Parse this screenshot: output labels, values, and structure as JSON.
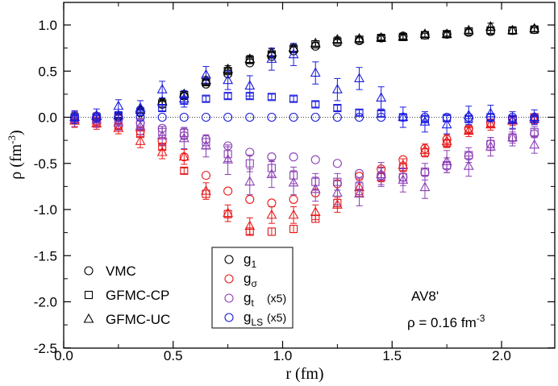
{
  "chart_data": {
    "type": "scatter",
    "xlabel": "r (fm)",
    "ylabel_base": "ρ (fm",
    "ylabel_sup": "-3",
    "ylabel_tail": ")",
    "xlim": [
      0.0,
      2.2
    ],
    "ylim": [
      -2.5,
      1.25
    ],
    "xticks": [
      0.0,
      0.5,
      1.0,
      1.5,
      2.0
    ],
    "xtick_labels": [
      "0.0",
      "0.5",
      "1.0",
      "1.5",
      "2.0"
    ],
    "yticks": [
      1.0,
      0.5,
      0.0,
      -0.5,
      -1.0,
      -1.5,
      -2.0,
      -2.5
    ],
    "ytick_labels": [
      "1.0",
      "0.5",
      "0.0",
      "-0.5",
      "-1.0",
      "-1.5",
      "-2.0",
      "-2.5"
    ],
    "colors": {
      "g1": "#000000",
      "gsigma": "#e8191a",
      "gt": "#8a3fb5",
      "gLS": "#1a1ae0"
    },
    "method_legend": [
      {
        "marker": "circle",
        "label": "VMC"
      },
      {
        "marker": "square",
        "label": "GFMC-CP"
      },
      {
        "marker": "triangle",
        "label": "GFMC-UC"
      }
    ],
    "component_legend": [
      {
        "key": "g1",
        "base": "g",
        "sub": "1",
        "note": ""
      },
      {
        "key": "gsigma",
        "base": "g",
        "sub": "σ",
        "note": ""
      },
      {
        "key": "gt",
        "base": "g",
        "sub": "t",
        "note": "(x5)"
      },
      {
        "key": "gLS",
        "base": "g",
        "sub": "LS",
        "note": "(x5)"
      }
    ],
    "annotation": {
      "line1": "AV8'",
      "line2_base": "ρ = 0.16 fm",
      "line2_sup": "-3"
    },
    "series": [
      {
        "key": "g1",
        "method": "VMC",
        "marker": "circle",
        "x": [
          0.05,
          0.15,
          0.25,
          0.35,
          0.45,
          0.55,
          0.65,
          0.75,
          0.85,
          0.95,
          1.05,
          1.15,
          1.25,
          1.35,
          1.45,
          1.55,
          1.65,
          1.75,
          1.85,
          1.95,
          2.05,
          2.15
        ],
        "y": [
          0.0,
          0.0,
          0.0,
          0.05,
          0.14,
          0.23,
          0.36,
          0.47,
          0.59,
          0.66,
          0.72,
          0.77,
          0.81,
          0.83,
          0.86,
          0.88,
          0.89,
          0.9,
          0.92,
          0.93,
          0.94,
          0.95
        ]
      },
      {
        "key": "g1",
        "method": "GFMC-CP",
        "marker": "square",
        "x": [
          0.05,
          0.15,
          0.25,
          0.35,
          0.45,
          0.55,
          0.65,
          0.75,
          0.85,
          0.95,
          1.05,
          1.15,
          1.25,
          1.35,
          1.45,
          1.55,
          1.65,
          1.75,
          1.85,
          1.95,
          2.05,
          2.15
        ],
        "y": [
          0.0,
          0.0,
          0.01,
          0.06,
          0.15,
          0.24,
          0.38,
          0.5,
          0.62,
          0.68,
          0.74,
          0.79,
          0.82,
          0.84,
          0.86,
          0.87,
          0.89,
          0.9,
          0.93,
          0.94,
          0.94,
          0.95
        ],
        "err": [
          0.03,
          0.02,
          0.02,
          0.02,
          0.02,
          0.02,
          0.03,
          0.03,
          0.03,
          0.03,
          0.03,
          0.02,
          0.02,
          0.02,
          0.02,
          0.02,
          0.02,
          0.02,
          0.02,
          0.03,
          0.03,
          0.02
        ]
      },
      {
        "key": "g1",
        "method": "GFMC-UC",
        "marker": "triangle",
        "x": [
          0.05,
          0.15,
          0.25,
          0.35,
          0.45,
          0.55,
          0.65,
          0.75,
          0.85,
          0.95,
          1.05,
          1.15,
          1.25,
          1.35,
          1.45,
          1.55,
          1.65,
          1.75,
          1.85,
          1.95,
          2.05,
          2.15
        ],
        "y": [
          0.0,
          0.01,
          0.02,
          0.08,
          0.17,
          0.25,
          0.4,
          0.52,
          0.63,
          0.7,
          0.75,
          0.8,
          0.84,
          0.85,
          0.86,
          0.87,
          0.9,
          0.9,
          0.94,
          0.98,
          0.94,
          0.96
        ],
        "err": [
          0.05,
          0.04,
          0.04,
          0.03,
          0.03,
          0.03,
          0.04,
          0.04,
          0.04,
          0.04,
          0.04,
          0.03,
          0.03,
          0.03,
          0.03,
          0.03,
          0.03,
          0.03,
          0.03,
          0.04,
          0.04,
          0.03
        ]
      },
      {
        "key": "gsigma",
        "method": "VMC",
        "marker": "circle",
        "x": [
          0.05,
          0.15,
          0.25,
          0.35,
          0.45,
          0.55,
          0.65,
          0.75,
          0.85,
          0.95,
          1.05,
          1.15,
          1.25,
          1.35,
          1.45,
          1.55,
          1.65,
          1.75,
          1.85,
          1.95,
          2.05,
          2.15
        ],
        "y": [
          0.0,
          -0.04,
          -0.08,
          -0.15,
          -0.26,
          -0.43,
          -0.63,
          -0.8,
          -0.89,
          -0.93,
          -0.89,
          -0.82,
          -0.72,
          -0.64,
          -0.56,
          -0.46,
          -0.34,
          -0.24,
          -0.12,
          -0.06,
          -0.02,
          0.0
        ]
      },
      {
        "key": "gsigma",
        "method": "GFMC-CP",
        "marker": "square",
        "x": [
          0.05,
          0.15,
          0.25,
          0.35,
          0.45,
          0.55,
          0.65,
          0.75,
          0.85,
          0.95,
          1.05,
          1.15,
          1.25,
          1.35,
          1.45,
          1.55,
          1.65,
          1.75,
          1.85,
          1.95,
          2.05,
          2.15
        ],
        "y": [
          -0.02,
          -0.06,
          -0.1,
          -0.18,
          -0.32,
          -0.58,
          -0.83,
          -1.05,
          -1.24,
          -1.24,
          -1.21,
          -1.1,
          -0.93,
          -0.82,
          -0.65,
          -0.54,
          -0.38,
          -0.28,
          -0.14,
          -0.07,
          -0.03,
          0.0
        ],
        "err": [
          0.04,
          0.03,
          0.03,
          0.03,
          0.03,
          0.03,
          0.04,
          0.04,
          0.04,
          0.04,
          0.04,
          0.04,
          0.04,
          0.04,
          0.04,
          0.04,
          0.04,
          0.03,
          0.03,
          0.03,
          0.03,
          0.03
        ]
      },
      {
        "key": "gsigma",
        "method": "GFMC-UC",
        "marker": "triangle",
        "x": [
          0.05,
          0.15,
          0.25,
          0.35,
          0.45,
          0.55,
          0.65,
          0.75,
          0.85,
          0.95,
          1.05,
          1.15,
          1.25,
          1.35,
          1.45,
          1.55,
          1.65,
          1.75,
          1.85,
          1.95,
          2.05,
          2.15
        ],
        "y": [
          -0.04,
          -0.07,
          -0.12,
          -0.26,
          -0.38,
          -0.43,
          -0.8,
          -1.04,
          -1.18,
          -1.06,
          -1.06,
          -1.03,
          -0.95,
          -0.76,
          -0.62,
          -0.52,
          -0.36,
          -0.26,
          -0.15,
          -0.08,
          -0.04,
          -0.02
        ],
        "err": [
          0.07,
          0.06,
          0.06,
          0.07,
          0.07,
          0.08,
          0.09,
          0.09,
          0.09,
          0.09,
          0.09,
          0.08,
          0.08,
          0.08,
          0.08,
          0.07,
          0.07,
          0.07,
          0.06,
          0.06,
          0.05,
          0.05
        ]
      },
      {
        "key": "gt",
        "method": "VMC",
        "marker": "circle",
        "x": [
          0.05,
          0.15,
          0.25,
          0.35,
          0.45,
          0.55,
          0.65,
          0.75,
          0.85,
          0.95,
          1.05,
          1.15,
          1.25,
          1.35,
          1.45,
          1.55,
          1.65,
          1.75,
          1.85,
          1.95,
          2.05,
          2.15
        ],
        "y": [
          0.0,
          0.0,
          -0.02,
          -0.06,
          -0.12,
          -0.2,
          -0.24,
          -0.31,
          -0.38,
          -0.43,
          -0.43,
          -0.46,
          -0.5,
          -0.61,
          -0.63,
          -0.65,
          -0.6,
          -0.53,
          -0.42,
          -0.29,
          -0.22,
          -0.18
        ]
      },
      {
        "key": "gt",
        "method": "GFMC-CP",
        "marker": "square",
        "x": [
          0.05,
          0.15,
          0.25,
          0.35,
          0.45,
          0.55,
          0.65,
          0.75,
          0.85,
          0.95,
          1.05,
          1.15,
          1.25,
          1.35,
          1.45,
          1.55,
          1.65,
          1.75,
          1.85,
          1.95,
          2.05,
          2.15
        ],
        "y": [
          -0.01,
          -0.02,
          -0.04,
          -0.08,
          -0.16,
          -0.17,
          -0.27,
          -0.4,
          -0.5,
          -0.55,
          -0.63,
          -0.7,
          -0.7,
          -0.75,
          -0.64,
          -0.65,
          -0.59,
          -0.52,
          -0.41,
          -0.29,
          -0.22,
          -0.16
        ],
        "err": [
          0.04,
          0.04,
          0.04,
          0.05,
          0.06,
          0.06,
          0.07,
          0.08,
          0.09,
          0.09,
          0.09,
          0.09,
          0.09,
          0.09,
          0.09,
          0.09,
          0.09,
          0.08,
          0.08,
          0.07,
          0.06,
          0.06
        ]
      },
      {
        "key": "gt",
        "method": "GFMC-UC",
        "marker": "triangle",
        "x": [
          0.05,
          0.15,
          0.25,
          0.35,
          0.45,
          0.55,
          0.65,
          0.75,
          0.85,
          0.95,
          1.05,
          1.15,
          1.25,
          1.35,
          1.45,
          1.55,
          1.65,
          1.75,
          1.85,
          1.95,
          2.05,
          2.15
        ],
        "y": [
          -0.02,
          -0.03,
          -0.06,
          -0.1,
          -0.2,
          -0.23,
          -0.31,
          -0.46,
          -0.7,
          -0.62,
          -0.71,
          -0.78,
          -0.82,
          -0.83,
          -0.62,
          -0.68,
          -0.76,
          -0.48,
          -0.53,
          -0.32,
          -0.22,
          -0.3
        ],
        "err": [
          0.08,
          0.08,
          0.08,
          0.09,
          0.1,
          0.11,
          0.12,
          0.16,
          0.14,
          0.14,
          0.13,
          0.13,
          0.13,
          0.13,
          0.13,
          0.13,
          0.12,
          0.12,
          0.11,
          0.1,
          0.09,
          0.09
        ]
      },
      {
        "key": "gLS",
        "method": "VMC",
        "marker": "circle",
        "x": [
          0.05,
          0.15,
          0.25,
          0.35,
          0.45,
          0.55,
          0.65,
          0.75,
          0.85,
          0.95,
          1.05,
          1.15,
          1.25,
          1.35,
          1.45,
          1.55,
          1.65,
          1.75,
          1.85,
          1.95,
          2.05,
          2.15
        ],
        "y": [
          0.0,
          0.0,
          0.0,
          0.0,
          0.0,
          0.0,
          0.0,
          0.0,
          0.0,
          0.0,
          0.0,
          0.0,
          0.0,
          0.0,
          0.0,
          0.0,
          0.0,
          0.0,
          0.0,
          0.0,
          0.0,
          0.0
        ]
      },
      {
        "key": "gLS",
        "method": "GFMC-CP",
        "marker": "square",
        "x": [
          0.05,
          0.15,
          0.25,
          0.35,
          0.45,
          0.55,
          0.65,
          0.75,
          0.85,
          0.95,
          1.05,
          1.15,
          1.25,
          1.35,
          1.45,
          1.55,
          1.65,
          1.75,
          1.85,
          1.95,
          2.05,
          2.15
        ],
        "y": [
          0.0,
          0.0,
          0.02,
          0.06,
          0.1,
          0.18,
          0.2,
          0.23,
          0.23,
          0.22,
          0.2,
          0.14,
          0.1,
          0.05,
          0.04,
          0.0,
          -0.02,
          -0.01,
          -0.02,
          0.0,
          -0.02,
          -0.02
        ],
        "err": [
          0.02,
          0.02,
          0.02,
          0.02,
          0.03,
          0.03,
          0.03,
          0.03,
          0.03,
          0.03,
          0.03,
          0.03,
          0.03,
          0.03,
          0.03,
          0.03,
          0.03,
          0.03,
          0.03,
          0.03,
          0.03,
          0.03
        ]
      },
      {
        "key": "gLS",
        "method": "GFMC-UC",
        "marker": "triangle",
        "x": [
          0.05,
          0.15,
          0.25,
          0.35,
          0.45,
          0.55,
          0.65,
          0.75,
          0.85,
          0.95,
          1.05,
          1.15,
          1.25,
          1.35,
          1.45,
          1.55,
          1.65,
          1.75,
          1.85,
          1.95,
          2.05,
          2.15
        ],
        "y": [
          0.0,
          0.02,
          0.12,
          0.1,
          0.3,
          0.2,
          0.46,
          0.4,
          0.34,
          0.63,
          0.68,
          0.48,
          0.3,
          0.42,
          0.21,
          0.0,
          -0.05,
          -0.08,
          0.02,
          0.04,
          -0.03,
          0.0
        ],
        "err": [
          0.07,
          0.07,
          0.07,
          0.08,
          0.09,
          0.09,
          0.09,
          0.1,
          0.11,
          0.12,
          0.12,
          0.12,
          0.12,
          0.12,
          0.12,
          0.11,
          0.11,
          0.1,
          0.1,
          0.09,
          0.09,
          0.08
        ]
      }
    ]
  }
}
